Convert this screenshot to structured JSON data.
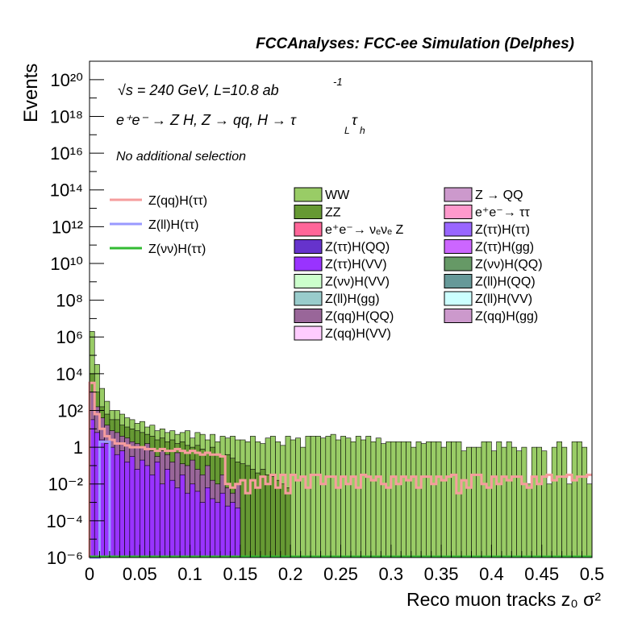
{
  "header": {
    "title": "FCCAnalyses: FCC-ee Simulation (Delphes)"
  },
  "annotations": {
    "energy": "√s = 240 GeV, L=10.8 ab",
    "lumi_exponent": "-1",
    "process": "e⁺e⁻ → Z H, Z → qq, H → τ",
    "process_tau1_sub": "L",
    "process_tau2": "τ",
    "process_tau2_sub": "h",
    "selection": "No additional selection"
  },
  "chart_data": {
    "type": "histogram",
    "title": "FCCAnalyses: FCC-ee Simulation (Delphes)",
    "xlabel": "Reco muon tracks z₀ σ²",
    "ylabel": "Events",
    "xlim": [
      0,
      0.5
    ],
    "ylim": [
      1e-06,
      1e+21
    ],
    "y_scale": "log",
    "x_ticks": [
      "0",
      "0.05",
      "0.1",
      "0.15",
      "0.2",
      "0.25",
      "0.3",
      "0.35",
      "0.4",
      "0.45",
      "0.5"
    ],
    "y_ticks": [
      "10⁻⁶",
      "10⁻⁴",
      "10⁻²",
      "1",
      "10²",
      "10⁴",
      "10⁶",
      "10⁸",
      "10¹⁰",
      "10¹²",
      "10¹⁴",
      "10¹⁶",
      "10¹⁸",
      "10²⁰"
    ],
    "y_tick_values": [
      -6,
      -4,
      -2,
      0,
      2,
      4,
      6,
      8,
      10,
      12,
      14,
      16,
      18,
      20
    ],
    "grid": false,
    "legend_placement": "top",
    "signal_series": [
      {
        "name": "Z(qq)H(ττ)",
        "color": "#f59d9d"
      },
      {
        "name": "Z(ll)H(ττ)",
        "color": "#9999ff"
      },
      {
        "name": "Z(νν)H(ττ)",
        "color": "#33bb33"
      }
    ],
    "background_series": [
      {
        "name": "WW",
        "color": "#99cc66"
      },
      {
        "name": "ZZ",
        "color": "#669933"
      },
      {
        "name": "e⁺e⁻→ νₑνₑ Z",
        "color": "#ff6699"
      },
      {
        "name": "Z(ττ)H(QQ)",
        "color": "#6633cc"
      },
      {
        "name": "Z(ττ)H(VV)",
        "color": "#9933ff"
      },
      {
        "name": "Z(νν)H(VV)",
        "color": "#ccffcc"
      },
      {
        "name": "Z(ll)H(gg)",
        "color": "#99cccc"
      },
      {
        "name": "Z(qq)H(QQ)",
        "color": "#996699"
      },
      {
        "name": "Z(qq)H(VV)",
        "color": "#ffccff"
      },
      {
        "name": "Z → QQ",
        "color": "#cc99cc"
      },
      {
        "name": "e⁺e⁻→ ττ",
        "color": "#ff99cc"
      },
      {
        "name": "Z(ττ)H(ττ)",
        "color": "#9966ff"
      },
      {
        "name": "Z(ττ)H(gg)",
        "color": "#cc66ff"
      },
      {
        "name": "Z(νν)H(QQ)",
        "color": "#669966"
      },
      {
        "name": "Z(ll)H(QQ)",
        "color": "#669999"
      },
      {
        "name": "Z(ll)H(VV)",
        "color": "#ccffff"
      },
      {
        "name": "Z(qq)H(gg)",
        "color": "#cc99cc"
      }
    ],
    "bin_width": 0.005,
    "ww_log10": [
      6.3,
      4.5,
      3.2,
      2.5,
      2.0,
      2.0,
      1.8,
      1.6,
      1.5,
      1.3,
      1.4,
      1.1,
      1.2,
      0.9,
      1.0,
      0.8,
      0.9,
      0.7,
      0.8,
      0.9,
      0.5,
      0.8,
      0.7,
      0.4,
      0.7,
      0.3,
      0.6,
      0.5,
      0.6,
      0.4,
      0.4,
      0.3,
      0.6,
      0.3,
      0.2,
      0.5,
      0.6,
      0.3,
      0.1,
      0.6,
      0.4,
      0.5,
      0.0,
      0.6,
      0.6,
      0.6,
      0.5,
      0.6,
      0.7,
      0.4,
      0.6,
      0.5,
      0.3,
      0.6,
      0.4,
      0.6,
      0.3,
      0.5,
      0.2,
      0.3,
      0.3,
      0.3,
      0.3,
      0.3,
      0.0,
      0.3,
      0.2,
      0.3,
      0.3,
      0.3,
      0.0,
      0.3,
      0.3,
      0.3,
      -0.2,
      0.0,
      0.0,
      0.0,
      0.3,
      0.3,
      -0.2,
      0.3,
      0.0,
      0.3,
      0.0,
      -0.2,
      0.0,
      -2.0,
      0.0,
      0.0,
      -0.2,
      -2.0,
      0.0,
      0.3,
      0.0,
      -2.0,
      0.3,
      0.3,
      0.0,
      -2.0
    ],
    "zz_log10": [
      4.0,
      3.0,
      2.2,
      1.8,
      1.5,
      1.5,
      1.2,
      1.1,
      1.0,
      0.9,
      0.8,
      0.7,
      0.6,
      0.4,
      0.5,
      0.3,
      0.4,
      0.2,
      0.3,
      0.1,
      0.0,
      0.1,
      -0.1,
      -0.3,
      0.0,
      -0.4,
      -0.5,
      -0.4,
      -0.6,
      -0.8,
      -0.9,
      -1.0,
      -1.2,
      -1.4,
      -1.2,
      -1.5,
      -1.6,
      -1.8,
      -2.0,
      -2.2
    ],
    "mid_log10": [
      3.0,
      2.2,
      1.6,
      1.2,
      0.9,
      0.8,
      0.6,
      0.5,
      0.3,
      0.2,
      0.0,
      0.2,
      -0.2,
      -0.5,
      -0.2,
      -0.4,
      -0.8,
      -0.3,
      -0.9,
      -1.0,
      -0.7,
      -1.2,
      -1.5,
      -1.0,
      -1.8,
      -2.0,
      -1.5,
      -2.2,
      -2.5,
      -2.0
    ],
    "purple_log10": [
      1.5,
      0.8,
      0.4,
      0.2,
      0.0,
      -0.4,
      -0.2,
      -0.8,
      -0.5,
      -1.2,
      -0.7,
      -1.0,
      -1.5,
      -0.8,
      -2.0,
      -1.2,
      -1.8,
      -2.2,
      -1.5,
      -2.5,
      -2.0,
      -2.4,
      -3.0,
      -2.2,
      -2.8,
      -3.0,
      -2.5,
      -3.2,
      -3.0,
      -3.3
    ],
    "signal_qq_log10": [
      3.5,
      1.8,
      1.0,
      0.6,
      0.4,
      0.2,
      0.2,
      0.1,
      0.0,
      0.0,
      0.0,
      -0.1,
      -0.1,
      -0.2,
      -0.1,
      -0.2,
      -0.2,
      -0.1,
      -0.2,
      -0.3,
      -0.2,
      -0.3,
      -0.4,
      -0.3,
      -0.4,
      -0.4,
      -0.5,
      -2.0,
      -2.2,
      -2.0,
      -1.8,
      -2.5,
      -1.8,
      -2.2,
      -1.6,
      -2.0,
      -1.5,
      -2.2,
      -1.5,
      -2.5,
      -1.5,
      -1.8,
      -1.6,
      -2.2,
      -1.5,
      -1.5,
      -2.0,
      -1.6,
      -1.6,
      -2.2,
      -1.6,
      -2.0,
      -1.6,
      -2.2,
      -1.5,
      -1.6,
      -1.8,
      -1.6,
      -2.0,
      -2.2,
      -1.6,
      -2.0,
      -1.6,
      -1.8,
      -1.6,
      -2.2,
      -1.6,
      -1.6,
      -2.0,
      -1.6,
      -1.8,
      -1.6,
      -1.5,
      -2.5,
      -1.8,
      -2.2,
      -1.5,
      -1.5,
      -2.0,
      -2.2,
      -1.6,
      -2.0,
      -1.6,
      -1.8,
      -1.6,
      -1.6,
      -2.0,
      -2.2,
      -1.6,
      -2.0,
      -1.6,
      -1.5,
      -1.8,
      -1.6,
      -1.6,
      -1.5,
      -1.8,
      -1.6,
      -1.6,
      -1.5
    ]
  }
}
